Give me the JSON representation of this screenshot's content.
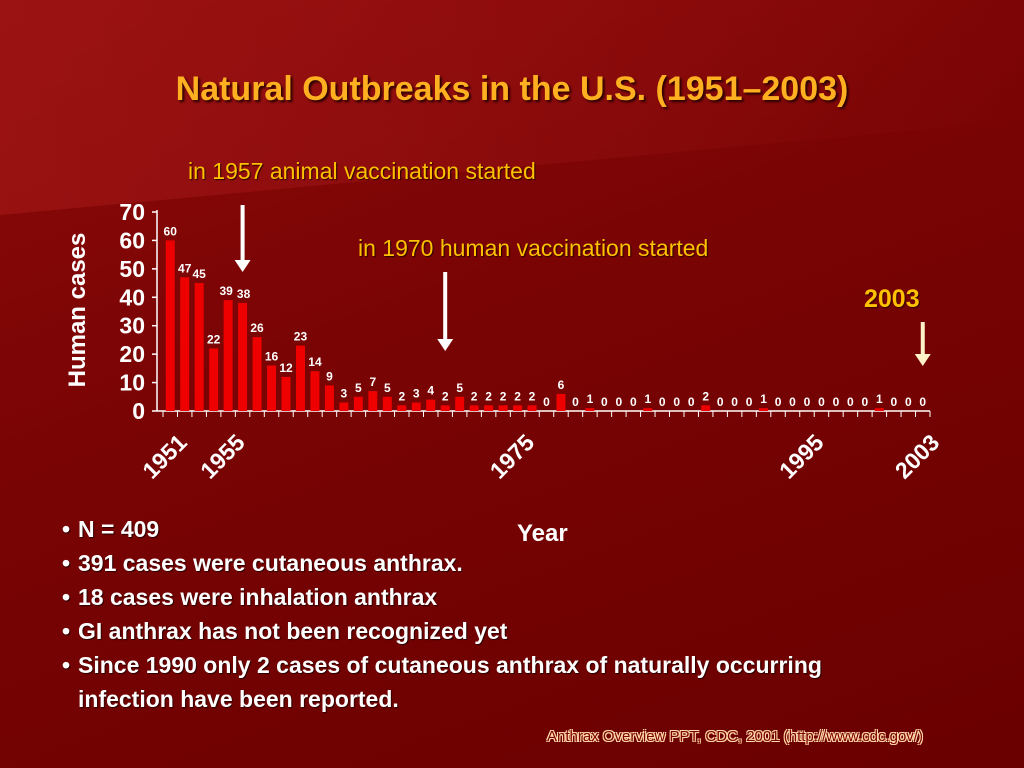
{
  "slide": {
    "title": "Natural Outbreaks in the U.S. (1951–2003)",
    "source": "Anthrax Overview PPT, CDC, 2001 (http://www.cdc.gov/)"
  },
  "annotations": {
    "vaccination_1957": "in 1957 animal vaccination started",
    "vaccination_1970": "in 1970 human vaccination started",
    "marker_2003": "2003"
  },
  "bullets": [
    "N = 409",
    "391 cases were cutaneous anthrax.",
    "18 cases were inhalation anthrax",
    "GI anthrax has not been recognized yet",
    "Since 1990 only 2 cases of cutaneous anthrax of naturally occurring infection have been reported."
  ],
  "colors": {
    "bar": "#ee0000",
    "arrow_white": "#ffffff",
    "arrow_2003": "#fff2c8",
    "annotation": "#ffc000"
  },
  "chart_data": {
    "type": "bar",
    "title": "",
    "xlabel": "Year",
    "ylabel": "Human cases",
    "ylim": [
      0,
      70
    ],
    "yticks": [
      0,
      10,
      20,
      30,
      40,
      50,
      60,
      70
    ],
    "x_tick_labels": [
      "1951",
      "1955",
      "1975",
      "1995",
      "2003"
    ],
    "categories": [
      1951,
      1952,
      1953,
      1954,
      1955,
      1956,
      1957,
      1958,
      1959,
      1960,
      1961,
      1962,
      1963,
      1964,
      1965,
      1966,
      1967,
      1968,
      1969,
      1970,
      1971,
      1972,
      1973,
      1974,
      1975,
      1976,
      1977,
      1978,
      1979,
      1980,
      1981,
      1982,
      1983,
      1984,
      1985,
      1986,
      1987,
      1988,
      1989,
      1990,
      1991,
      1992,
      1993,
      1994,
      1995,
      1996,
      1997,
      1998,
      1999,
      2000,
      2001,
      2002,
      2003
    ],
    "values": [
      60,
      47,
      45,
      22,
      39,
      38,
      26,
      16,
      12,
      23,
      14,
      9,
      3,
      5,
      7,
      5,
      2,
      3,
      4,
      2,
      5,
      2,
      2,
      2,
      2,
      2,
      0,
      6,
      0,
      1,
      0,
      0,
      0,
      1,
      0,
      0,
      0,
      2,
      0,
      0,
      0,
      1,
      0,
      0,
      0,
      0,
      0,
      0,
      0,
      1,
      0,
      0,
      0
    ],
    "arrows": [
      {
        "label": "in 1957 animal vaccination started",
        "year": 1956
      },
      {
        "label": "in 1970 human vaccination started",
        "year": 1970
      },
      {
        "label": "2003",
        "year": 2003
      }
    ]
  }
}
